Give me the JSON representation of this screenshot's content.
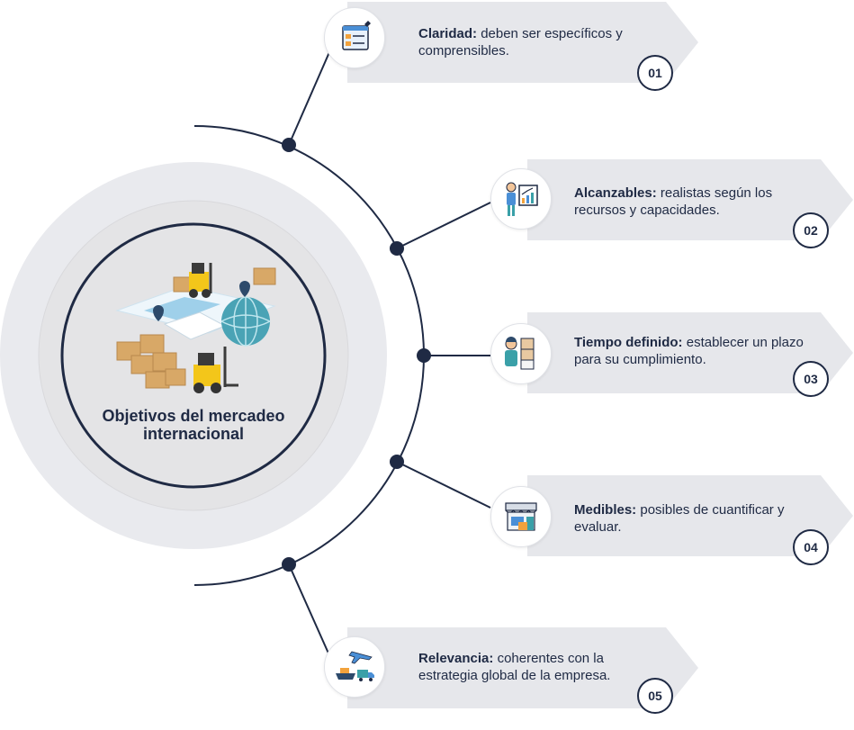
{
  "center": {
    "title_line1": "Objetivos del mercadeo",
    "title_line2": "internacional",
    "illustration": "logistics-world-map-forklifts-globe-illustration"
  },
  "items": [
    {
      "number": "01",
      "term": "Claridad:",
      "description": "deben ser específicos y comprensibles.",
      "icon": "form-clipboard-icon"
    },
    {
      "number": "02",
      "term": "Alcanzables:",
      "description": "realistas según los recursos y capacidades.",
      "icon": "presenter-growth-chart-icon"
    },
    {
      "number": "03",
      "term": "Tiempo definido:",
      "description": "establecer un plazo para su cumplimiento.",
      "icon": "worker-boxes-icon"
    },
    {
      "number": "04",
      "term": "Medibles:",
      "description": "posibles de cuantificar y evaluar.",
      "icon": "storefront-icon"
    },
    {
      "number": "05",
      "term": "Relevancia:",
      "description": "coherentes con la estrategia global de la empresa.",
      "icon": "plane-ship-truck-icon"
    }
  ],
  "colors": {
    "navy": "#1f2a44",
    "bar_gray": "#e6e7eb",
    "outer_ring": "#e9eaee",
    "inner_disc": "#e4e4e6"
  }
}
